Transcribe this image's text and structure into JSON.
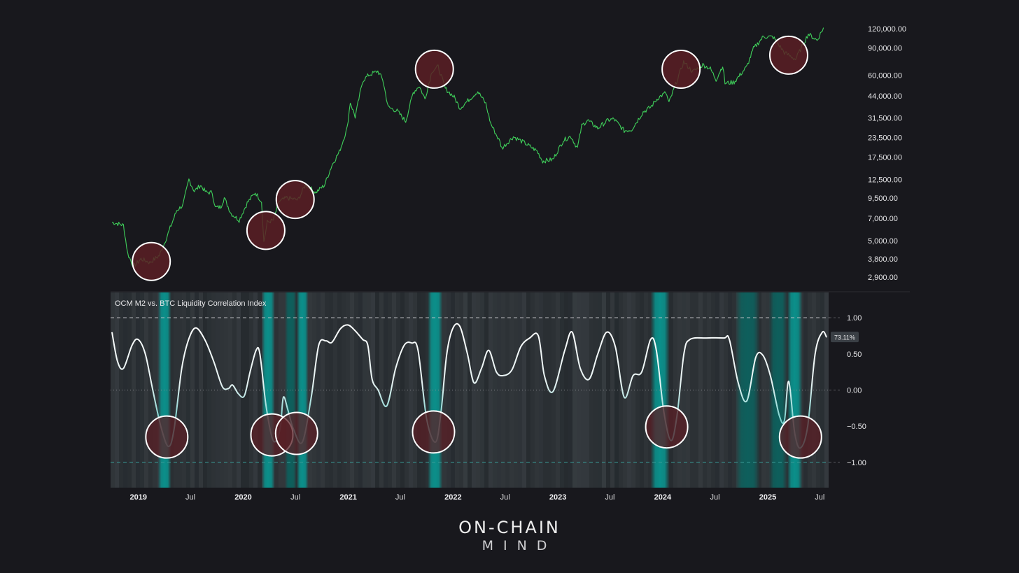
{
  "chart_data": [
    {
      "type": "line",
      "scale": "log",
      "series": [
        {
          "color": "#3fcf5a",
          "points": [
            [
              "2018-10-01",
              6600
            ],
            [
              "2018-10-15",
              6500
            ],
            [
              "2018-11-10",
              6300
            ],
            [
              "2018-11-25",
              4100
            ],
            [
              "2018-12-15",
              3400
            ],
            [
              "2019-01-10",
              3800
            ],
            [
              "2019-02-10",
              3600
            ],
            [
              "2019-03-15",
              4000
            ],
            [
              "2019-04-05",
              5000
            ],
            [
              "2019-05-15",
              7900
            ],
            [
              "2019-06-05",
              8500
            ],
            [
              "2019-06-26",
              12500
            ],
            [
              "2019-07-15",
              10500
            ],
            [
              "2019-08-05",
              11500
            ],
            [
              "2019-08-25",
              10300
            ],
            [
              "2019-09-15",
              10300
            ],
            [
              "2019-09-26",
              8200
            ],
            [
              "2019-10-15",
              8300
            ],
            [
              "2019-10-27",
              9500
            ],
            [
              "2019-11-20",
              7500
            ],
            [
              "2019-12-18",
              6800
            ],
            [
              "2020-01-15",
              8800
            ],
            [
              "2020-02-12",
              10300
            ],
            [
              "2020-03-05",
              9000
            ],
            [
              "2020-03-13",
              4900
            ],
            [
              "2020-03-25",
              6600
            ],
            [
              "2020-04-15",
              6800
            ],
            [
              "2020-05-05",
              9000
            ],
            [
              "2020-06-01",
              9500
            ],
            [
              "2020-07-10",
              9200
            ],
            [
              "2020-08-05",
              11600
            ],
            [
              "2020-09-10",
              10300
            ],
            [
              "2020-10-10",
              11500
            ],
            [
              "2020-11-05",
              15500
            ],
            [
              "2020-12-01",
              19000
            ],
            [
              "2020-12-28",
              27000
            ],
            [
              "2021-01-08",
              40000
            ],
            [
              "2021-01-25",
              32000
            ],
            [
              "2021-02-20",
              55000
            ],
            [
              "2021-03-13",
              60000
            ],
            [
              "2021-04-14",
              63500
            ],
            [
              "2021-05-01",
              56000
            ],
            [
              "2021-05-20",
              37000
            ],
            [
              "2021-06-20",
              35000
            ],
            [
              "2021-07-20",
              30000
            ],
            [
              "2021-08-15",
              46000
            ],
            [
              "2021-09-05",
              51000
            ],
            [
              "2021-09-25",
              42000
            ],
            [
              "2021-10-20",
              64000
            ],
            [
              "2021-11-10",
              68000
            ],
            [
              "2021-12-05",
              49000
            ],
            [
              "2022-01-05",
              43000
            ],
            [
              "2022-01-25",
              36500
            ],
            [
              "2022-03-28",
              47000
            ],
            [
              "2022-04-25",
              39000
            ],
            [
              "2022-05-12",
              29000
            ],
            [
              "2022-06-13",
              22000
            ],
            [
              "2022-06-20",
              20000
            ],
            [
              "2022-07-30",
              23800
            ],
            [
              "2022-09-10",
              21500
            ],
            [
              "2022-10-20",
              19200
            ],
            [
              "2022-11-09",
              16500
            ],
            [
              "2022-12-15",
              16900
            ],
            [
              "2023-01-20",
              22500
            ],
            [
              "2023-02-15",
              24000
            ],
            [
              "2023-03-10",
              20000
            ],
            [
              "2023-03-25",
              28000
            ],
            [
              "2023-04-14",
              30500
            ],
            [
              "2023-05-20",
              27000
            ],
            [
              "2023-06-25",
              30500
            ],
            [
              "2023-07-15",
              31000
            ],
            [
              "2023-08-20",
              26000
            ],
            [
              "2023-09-15",
              26500
            ],
            [
              "2023-10-25",
              34500
            ],
            [
              "2023-11-20",
              37000
            ],
            [
              "2023-12-15",
              42500
            ],
            [
              "2024-01-12",
              46000
            ],
            [
              "2024-01-23",
              39500
            ],
            [
              "2024-02-15",
              52000
            ],
            [
              "2024-03-14",
              73000
            ],
            [
              "2024-04-15",
              63000
            ],
            [
              "2024-05-20",
              70000
            ],
            [
              "2024-06-15",
              66000
            ],
            [
              "2024-07-05",
              56000
            ],
            [
              "2024-07-28",
              69000
            ],
            [
              "2024-08-05",
              53000
            ],
            [
              "2024-09-06",
              54000
            ],
            [
              "2024-10-20",
              68000
            ],
            [
              "2024-11-12",
              89000
            ],
            [
              "2024-12-17",
              107000
            ],
            [
              "2025-01-20",
              106000
            ],
            [
              "2025-02-28",
              84000
            ],
            [
              "2025-04-08",
              76000
            ],
            [
              "2025-05-22",
              111000
            ],
            [
              "2025-06-22",
              101000
            ],
            [
              "2025-07-14",
              122000
            ]
          ]
        }
      ],
      "y_ticks": [
        "120,000.00",
        "90,000.00",
        "60,000.00",
        "44,000.00",
        "31,500.00",
        "23,500.00",
        "17,500.00",
        "12,500.00",
        "9,500.00",
        "7,000.00",
        "5,000.00",
        "3,800.00",
        "2,900.00"
      ],
      "y_tick_values": [
        120000,
        90000,
        60000,
        44000,
        31500,
        23500,
        17500,
        12500,
        9500,
        7000,
        5000,
        3800,
        2900
      ],
      "y_range": [
        2500,
        135000
      ],
      "x_range": [
        "2018-10-01",
        "2025-08-01"
      ],
      "highlight_circles": [
        "2019-02-15",
        "2020-03-20",
        "2020-06-30",
        "2021-10-28",
        "2024-03-05",
        "2025-03-15"
      ]
    },
    {
      "type": "line",
      "title": "OCM M2 vs. BTC Liquidity Correlation Index",
      "x_range": [
        "2018-10-01",
        "2025-08-01"
      ],
      "y_range": [
        -1.35,
        1.35
      ],
      "y_ticks": [
        "1.00",
        "0.50",
        "0.00",
        "−0.50",
        "−1.00"
      ],
      "y_tick_values": [
        1,
        0.5,
        0,
        -0.5,
        -1
      ],
      "reference_lines": [
        1,
        0,
        -1
      ],
      "last_value_label": "73.11%",
      "x_ticks": [
        {
          "label": "2019",
          "date": "2019-01-01",
          "bold": true
        },
        {
          "label": "Jul",
          "date": "2019-07-01",
          "bold": false
        },
        {
          "label": "2020",
          "date": "2020-01-01",
          "bold": true
        },
        {
          "label": "Jul",
          "date": "2020-07-01",
          "bold": false
        },
        {
          "label": "2021",
          "date": "2021-01-01",
          "bold": true
        },
        {
          "label": "Jul",
          "date": "2021-07-01",
          "bold": false
        },
        {
          "label": "2022",
          "date": "2022-01-01",
          "bold": true
        },
        {
          "label": "Jul",
          "date": "2022-07-01",
          "bold": false
        },
        {
          "label": "2023",
          "date": "2023-01-01",
          "bold": true
        },
        {
          "label": "Jul",
          "date": "2023-07-01",
          "bold": false
        },
        {
          "label": "2024",
          "date": "2024-01-01",
          "bold": true
        },
        {
          "label": "Jul",
          "date": "2024-07-01",
          "bold": false
        },
        {
          "label": "2025",
          "date": "2025-01-01",
          "bold": true
        },
        {
          "label": "Jul",
          "date": "2025-07-01",
          "bold": false
        }
      ],
      "series": [
        {
          "color": "#ffffff",
          "low_color": "#3ec6c1",
          "points": [
            [
              "2018-10-01",
              0.8
            ],
            [
              "2018-10-20",
              0.4
            ],
            [
              "2018-11-10",
              0.3
            ],
            [
              "2018-12-10",
              0.62
            ],
            [
              "2018-12-31",
              0.7
            ],
            [
              "2019-01-25",
              0.5
            ],
            [
              "2019-02-20",
              0.0
            ],
            [
              "2019-03-20",
              -0.5
            ],
            [
              "2019-04-15",
              -0.78
            ],
            [
              "2019-05-05",
              -0.55
            ],
            [
              "2019-06-01",
              0.3
            ],
            [
              "2019-06-25",
              0.7
            ],
            [
              "2019-07-20",
              0.86
            ],
            [
              "2019-08-20",
              0.7
            ],
            [
              "2019-09-20",
              0.4
            ],
            [
              "2019-10-20",
              0.05
            ],
            [
              "2019-11-10",
              0.02
            ],
            [
              "2019-11-25",
              0.07
            ],
            [
              "2019-12-15",
              -0.05
            ],
            [
              "2020-01-05",
              -0.08
            ],
            [
              "2020-01-25",
              0.25
            ],
            [
              "2020-02-15",
              0.55
            ],
            [
              "2020-02-28",
              0.5
            ],
            [
              "2020-03-20",
              -0.2
            ],
            [
              "2020-04-10",
              -0.65
            ],
            [
              "2020-04-25",
              -0.7
            ],
            [
              "2020-05-10",
              -0.5
            ],
            [
              "2020-05-20",
              -0.1
            ],
            [
              "2020-06-05",
              -0.28
            ],
            [
              "2020-06-25",
              -0.55
            ],
            [
              "2020-07-25",
              -0.72
            ],
            [
              "2020-08-25",
              -0.1
            ],
            [
              "2020-09-20",
              0.62
            ],
            [
              "2020-10-15",
              0.68
            ],
            [
              "2020-11-05",
              0.66
            ],
            [
              "2020-12-05",
              0.85
            ],
            [
              "2020-12-31",
              0.9
            ],
            [
              "2021-01-25",
              0.82
            ],
            [
              "2021-02-20",
              0.7
            ],
            [
              "2021-03-10",
              0.62
            ],
            [
              "2021-03-25",
              0.15
            ],
            [
              "2021-04-15",
              0.0
            ],
            [
              "2021-05-15",
              -0.22
            ],
            [
              "2021-06-15",
              0.3
            ],
            [
              "2021-07-15",
              0.62
            ],
            [
              "2021-08-10",
              0.65
            ],
            [
              "2021-09-01",
              0.55
            ],
            [
              "2021-10-01",
              -0.4
            ],
            [
              "2021-11-01",
              -0.72
            ],
            [
              "2021-11-20",
              -0.3
            ],
            [
              "2021-12-10",
              0.5
            ],
            [
              "2022-01-01",
              0.86
            ],
            [
              "2022-01-25",
              0.88
            ],
            [
              "2022-02-20",
              0.5
            ],
            [
              "2022-03-15",
              0.1
            ],
            [
              "2022-04-10",
              0.3
            ],
            [
              "2022-05-05",
              0.55
            ],
            [
              "2022-06-01",
              0.25
            ],
            [
              "2022-06-25",
              0.2
            ],
            [
              "2022-07-25",
              0.28
            ],
            [
              "2022-08-25",
              0.6
            ],
            [
              "2022-09-25",
              0.72
            ],
            [
              "2022-10-25",
              0.75
            ],
            [
              "2022-11-15",
              0.2
            ],
            [
              "2022-12-15",
              -0.02
            ],
            [
              "2023-01-25",
              0.55
            ],
            [
              "2023-02-20",
              0.8
            ],
            [
              "2023-03-20",
              0.3
            ],
            [
              "2023-04-20",
              0.15
            ],
            [
              "2023-05-20",
              0.5
            ],
            [
              "2023-06-20",
              0.8
            ],
            [
              "2023-07-20",
              0.6
            ],
            [
              "2023-08-20",
              -0.1
            ],
            [
              "2023-09-20",
              0.2
            ],
            [
              "2023-10-20",
              0.25
            ],
            [
              "2023-11-20",
              0.7
            ],
            [
              "2023-12-10",
              0.55
            ],
            [
              "2024-01-05",
              -0.3
            ],
            [
              "2024-01-30",
              -0.7
            ],
            [
              "2024-02-20",
              -0.35
            ],
            [
              "2024-03-15",
              0.5
            ],
            [
              "2024-04-05",
              0.7
            ],
            [
              "2024-06-01",
              0.72
            ],
            [
              "2024-08-01",
              0.72
            ],
            [
              "2024-08-20",
              0.7
            ],
            [
              "2024-09-20",
              0.1
            ],
            [
              "2024-10-20",
              -0.15
            ],
            [
              "2024-11-20",
              0.45
            ],
            [
              "2024-12-15",
              0.48
            ],
            [
              "2025-01-10",
              0.2
            ],
            [
              "2025-02-10",
              -0.35
            ],
            [
              "2025-02-28",
              -0.42
            ],
            [
              "2025-03-15",
              0.12
            ],
            [
              "2025-04-05",
              -0.6
            ],
            [
              "2025-04-25",
              -0.8
            ],
            [
              "2025-05-20",
              -0.5
            ],
            [
              "2025-06-15",
              0.5
            ],
            [
              "2025-07-10",
              0.8
            ],
            [
              "2025-07-25",
              0.73
            ]
          ]
        }
      ],
      "background_bands": [
        {
          "from": "2019-03-10",
          "to": "2019-04-25",
          "tone": "teal"
        },
        {
          "from": "2020-03-05",
          "to": "2020-04-20",
          "tone": "teal"
        },
        {
          "from": "2020-05-25",
          "to": "2020-07-05",
          "tone": "mid"
        },
        {
          "from": "2020-07-05",
          "to": "2020-08-15",
          "tone": "teal"
        },
        {
          "from": "2021-10-05",
          "to": "2021-11-25",
          "tone": "teal"
        },
        {
          "from": "2023-11-20",
          "to": "2024-01-25",
          "tone": "teal"
        },
        {
          "from": "2024-09-10",
          "to": "2024-12-05",
          "tone": "mid"
        },
        {
          "from": "2025-01-05",
          "to": "2025-03-10",
          "tone": "mid"
        },
        {
          "from": "2025-03-10",
          "to": "2025-05-01",
          "tone": "teal"
        }
      ],
      "highlight_circles": [
        {
          "date": "2019-04-10",
          "value": -0.65
        },
        {
          "date": "2020-04-10",
          "value": -0.62
        },
        {
          "date": "2020-07-05",
          "value": -0.6
        },
        {
          "date": "2021-10-25",
          "value": -0.58
        },
        {
          "date": "2024-01-15",
          "value": -0.51
        },
        {
          "date": "2025-04-25",
          "value": -0.65
        }
      ]
    }
  ],
  "brand": {
    "line1": "ON-CHAIN",
    "line2": "MIND"
  },
  "colors": {
    "background": "#18181d",
    "price": "#3fcf5a",
    "teal": "#0a8a86",
    "circle_fill": "#5a1f25",
    "circle_stroke": "#ffffff"
  }
}
